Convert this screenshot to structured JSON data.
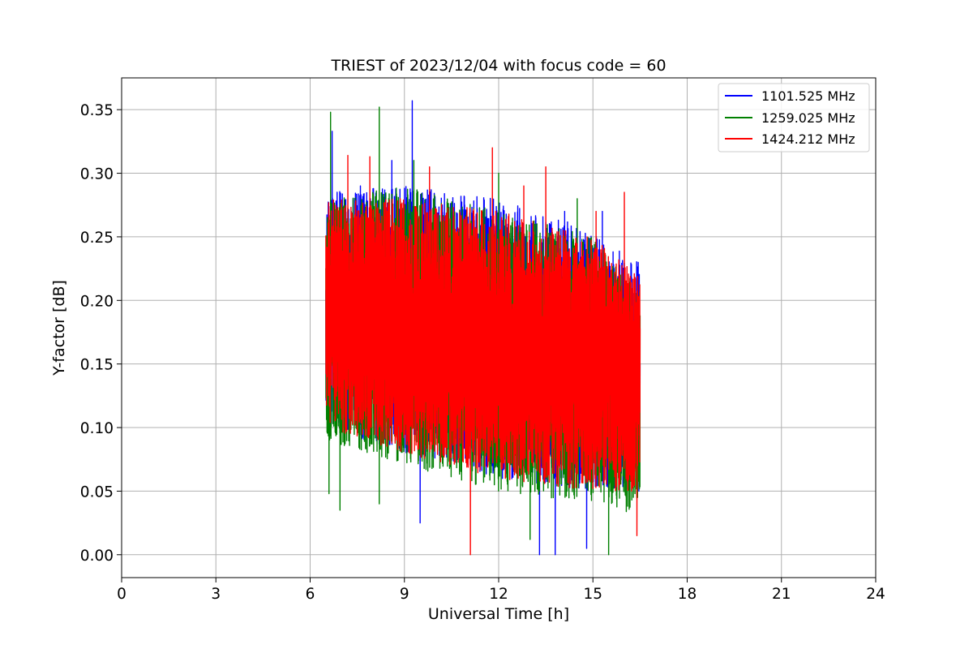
{
  "chart_data": {
    "type": "line",
    "title": "TRIEST of 2023/12/04 with focus code = 60",
    "xlabel": "Universal Time [h]",
    "ylabel": "Y-factor [dB]",
    "xlim": [
      0,
      24
    ],
    "ylim": [
      -0.018,
      0.375
    ],
    "xticks": [
      "0",
      "3",
      "6",
      "9",
      "12",
      "15",
      "18",
      "21",
      "24"
    ],
    "yticks": [
      "0.00",
      "0.05",
      "0.10",
      "0.15",
      "0.20",
      "0.25",
      "0.30",
      "0.35"
    ],
    "grid": true,
    "legend_position": "top-right",
    "series": [
      {
        "name": "1101.525 MHz",
        "color": "#0000ff",
        "x_range": [
          6.5,
          16.5
        ],
        "envelope": {
          "x": [
            6.5,
            9,
            12,
            15,
            16.5
          ],
          "upper": [
            0.285,
            0.29,
            0.28,
            0.255,
            0.23
          ],
          "lower": [
            0.1,
            0.08,
            0.06,
            0.05,
            0.05
          ]
        },
        "spikes": [
          {
            "x": 6.7,
            "y": 0.333
          },
          {
            "x": 7.6,
            "y": 0.29
          },
          {
            "x": 8.6,
            "y": 0.31
          },
          {
            "x": 9.25,
            "y": 0.357
          },
          {
            "x": 9.5,
            "y": 0.025
          },
          {
            "x": 13.3,
            "y": 0.0
          },
          {
            "x": 13.8,
            "y": 0.0
          },
          {
            "x": 14.1,
            "y": 0.27
          },
          {
            "x": 14.8,
            "y": 0.005
          },
          {
            "x": 15.3,
            "y": 0.27
          }
        ]
      },
      {
        "name": "1259.025 MHz",
        "color": "#008000",
        "x_range": [
          6.5,
          16.5
        ],
        "envelope": {
          "x": [
            6.5,
            9,
            12,
            15,
            16.5
          ],
          "upper": [
            0.28,
            0.29,
            0.27,
            0.25,
            0.21
          ],
          "lower": [
            0.09,
            0.07,
            0.05,
            0.04,
            0.03
          ]
        },
        "spikes": [
          {
            "x": 6.65,
            "y": 0.348
          },
          {
            "x": 6.6,
            "y": 0.048
          },
          {
            "x": 6.95,
            "y": 0.035
          },
          {
            "x": 8.2,
            "y": 0.352
          },
          {
            "x": 8.2,
            "y": 0.04
          },
          {
            "x": 9.3,
            "y": 0.31
          },
          {
            "x": 12.0,
            "y": 0.3
          },
          {
            "x": 13.0,
            "y": 0.012
          },
          {
            "x": 14.5,
            "y": 0.28
          },
          {
            "x": 15.5,
            "y": 0.0
          }
        ]
      },
      {
        "name": "1424.212 MHz",
        "color": "#ff0000",
        "x_range": [
          6.5,
          16.5
        ],
        "envelope": {
          "x": [
            6.5,
            9,
            12,
            15,
            16.5
          ],
          "upper": [
            0.28,
            0.28,
            0.27,
            0.25,
            0.22
          ],
          "lower": [
            0.1,
            0.08,
            0.06,
            0.05,
            0.05
          ]
        },
        "spikes": [
          {
            "x": 7.2,
            "y": 0.314
          },
          {
            "x": 7.9,
            "y": 0.313
          },
          {
            "x": 9.8,
            "y": 0.305
          },
          {
            "x": 11.1,
            "y": 0.0
          },
          {
            "x": 11.8,
            "y": 0.32
          },
          {
            "x": 12.8,
            "y": 0.29
          },
          {
            "x": 13.5,
            "y": 0.305
          },
          {
            "x": 15.1,
            "y": 0.27
          },
          {
            "x": 16.0,
            "y": 0.285
          },
          {
            "x": 16.4,
            "y": 0.015
          }
        ]
      }
    ]
  }
}
